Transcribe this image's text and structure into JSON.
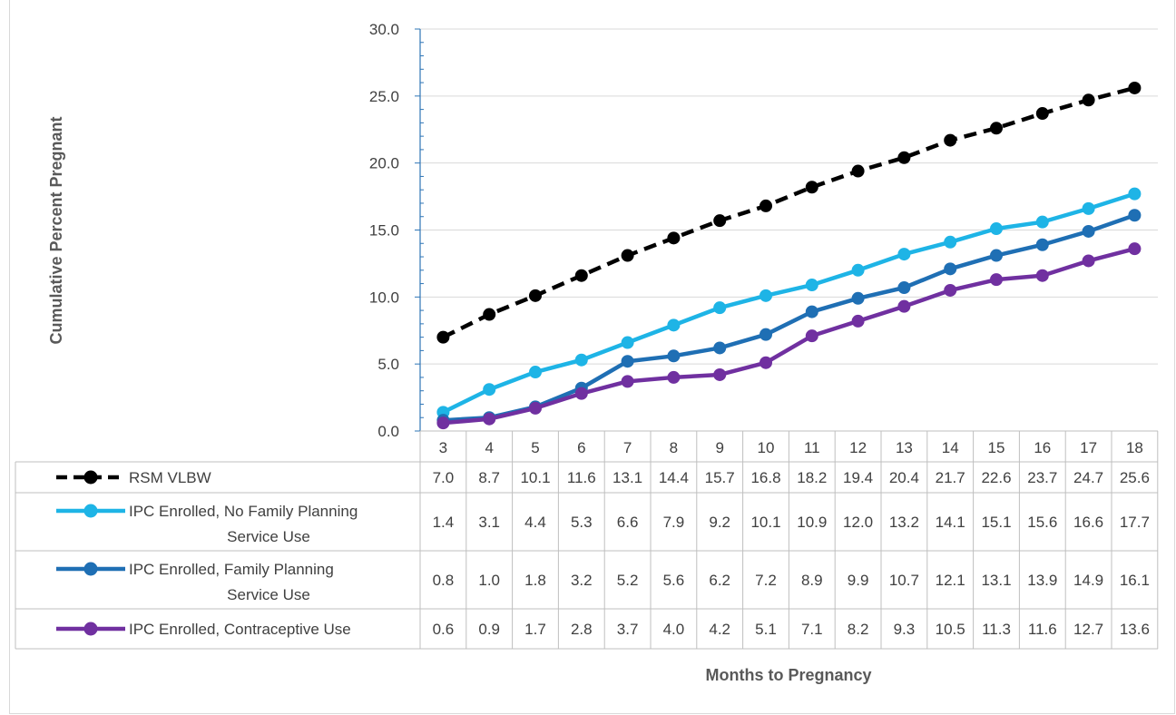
{
  "chart_data": {
    "type": "line",
    "title": "",
    "xlabel": "Months to Pregnancy",
    "ylabel": "Cumulative Percent Pregnant",
    "ylim": [
      0,
      30
    ],
    "y_ticks": [
      "0.0",
      "5.0",
      "10.0",
      "15.0",
      "20.0",
      "25.0",
      "30.0"
    ],
    "grid": true,
    "legend": "data-table",
    "categories": [
      "3",
      "4",
      "5",
      "6",
      "7",
      "8",
      "9",
      "10",
      "11",
      "12",
      "13",
      "14",
      "15",
      "16",
      "17",
      "18"
    ],
    "series": [
      {
        "name": "RSM VLBW",
        "legend_lines": [
          "RSM VLBW"
        ],
        "color": "#000000",
        "dashed": true,
        "values": [
          7.0,
          8.7,
          10.1,
          11.6,
          13.1,
          14.4,
          15.7,
          16.8,
          18.2,
          19.4,
          20.4,
          21.7,
          22.6,
          23.7,
          24.7,
          25.6
        ],
        "labels": [
          "7.0",
          "8.7",
          "10.1",
          "11.6",
          "13.1",
          "14.4",
          "15.7",
          "16.8",
          "18.2",
          "19.4",
          "20.4",
          "21.7",
          "22.6",
          "23.7",
          "24.7",
          "25.6"
        ]
      },
      {
        "name": "IPC Enrolled, No Family Planning Service Use",
        "legend_lines": [
          "IPC Enrolled, No Family Planning",
          "Service Use"
        ],
        "color": "#1eb4e6",
        "dashed": false,
        "values": [
          1.4,
          3.1,
          4.4,
          5.3,
          6.6,
          7.9,
          9.2,
          10.1,
          10.9,
          12.0,
          13.2,
          14.1,
          15.1,
          15.6,
          16.6,
          17.7
        ],
        "labels": [
          "1.4",
          "3.1",
          "4.4",
          "5.3",
          "6.6",
          "7.9",
          "9.2",
          "10.1",
          "10.9",
          "12.0",
          "13.2",
          "14.1",
          "15.1",
          "15.6",
          "16.6",
          "17.7"
        ]
      },
      {
        "name": "IPC Enrolled, Family Planning Service Use",
        "legend_lines": [
          "IPC Enrolled, Family Planning",
          "Service Use"
        ],
        "color": "#1f6fb4",
        "dashed": false,
        "values": [
          0.8,
          1.0,
          1.8,
          3.2,
          5.2,
          5.6,
          6.2,
          7.2,
          8.9,
          9.9,
          10.7,
          12.1,
          13.1,
          13.9,
          14.9,
          16.1
        ],
        "labels": [
          "0.8",
          "1.0",
          "1.8",
          "3.2",
          "5.2",
          "5.6",
          "6.2",
          "7.2",
          "8.9",
          "9.9",
          "10.7",
          "12.1",
          "13.1",
          "13.9",
          "14.9",
          "16.1"
        ]
      },
      {
        "name": "IPC Enrolled, Contraceptive Use",
        "legend_lines": [
          "IPC Enrolled, Contraceptive Use"
        ],
        "color": "#7030a0",
        "dashed": false,
        "values": [
          0.6,
          0.9,
          1.7,
          2.8,
          3.7,
          4.0,
          4.2,
          5.1,
          7.1,
          8.2,
          9.3,
          10.5,
          11.3,
          11.6,
          12.7,
          13.6
        ],
        "labels": [
          "0.6",
          "0.9",
          "1.7",
          "2.8",
          "3.7",
          "4.0",
          "4.2",
          "5.1",
          "7.1",
          "8.2",
          "9.3",
          "10.5",
          "11.3",
          "11.6",
          "12.7",
          "13.6"
        ]
      }
    ]
  }
}
